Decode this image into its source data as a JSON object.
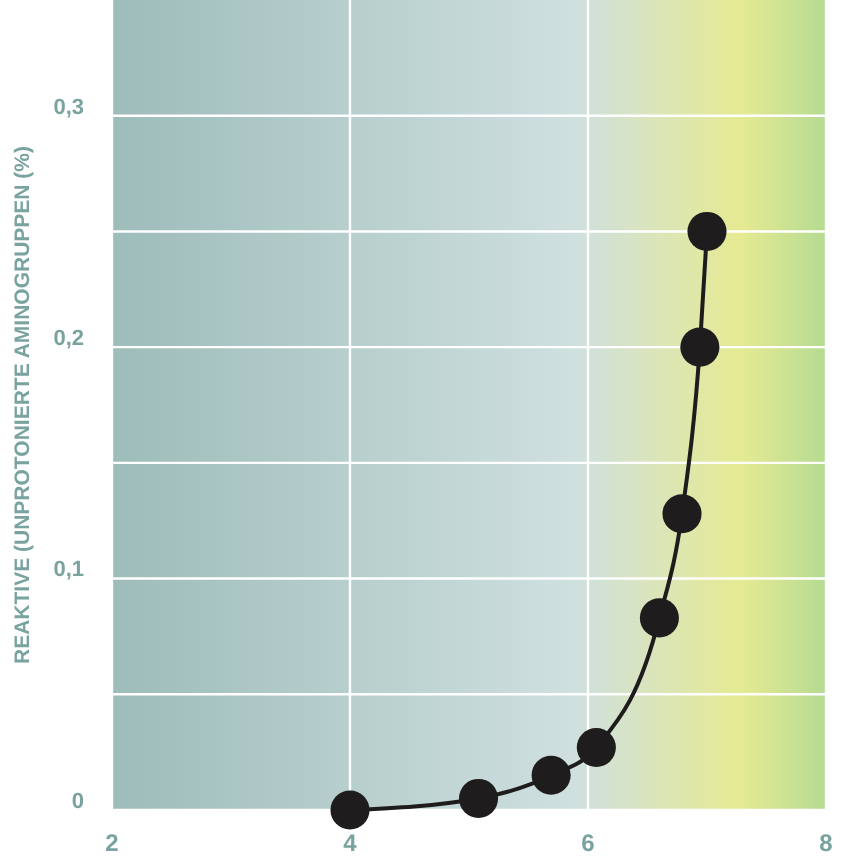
{
  "chart_data": {
    "type": "line",
    "ylabel": "REAKTIVE (UNPROTONIERTE AMINOGRUPPEN (%)",
    "x": [
      4.0,
      5.08,
      5.69,
      6.07,
      6.6,
      6.79,
      6.94,
      7.0
    ],
    "series": [
      {
        "color": "#1e1c1c",
        "values": [
          0,
          0.005,
          0.015,
          0.027,
          0.083,
          0.128,
          0.2,
          0.25
        ]
      }
    ],
    "xlim": [
      2,
      8
    ],
    "ylim": [
      0,
      0.35
    ],
    "xticks": [
      2,
      4,
      6,
      8
    ],
    "yticks": [
      {
        "value": 0,
        "label": "0"
      },
      {
        "value": 0.05,
        "label": null
      },
      {
        "value": 0.1,
        "label": "0,1"
      },
      {
        "value": 0.15,
        "label": null
      },
      {
        "value": 0.2,
        "label": "0,2"
      },
      {
        "value": 0.25,
        "label": null
      },
      {
        "value": 0.3,
        "label": "0,3"
      }
    ],
    "grid": true,
    "marker": "circle",
    "line_style": "solid"
  }
}
